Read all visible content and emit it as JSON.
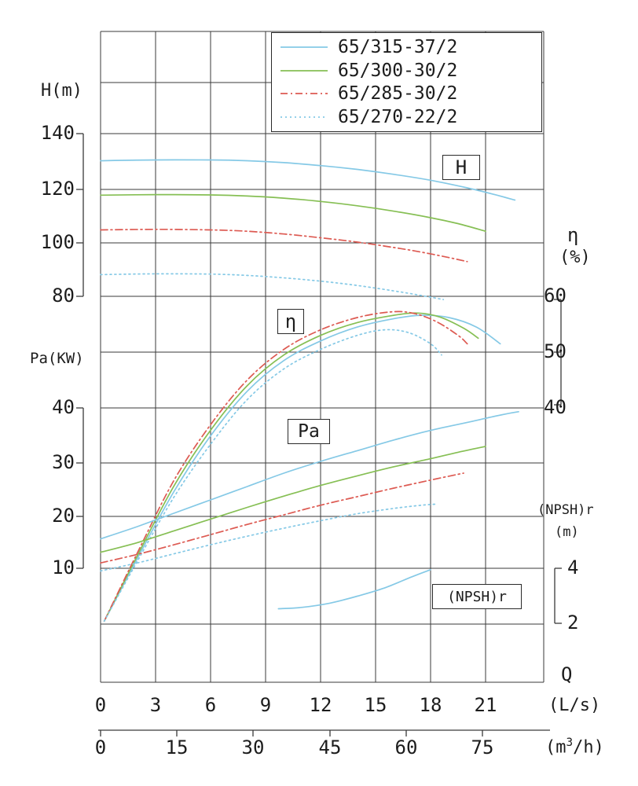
{
  "legend": {
    "items": [
      {
        "label": "65/315-37/2",
        "color": "blue",
        "dash": "solid"
      },
      {
        "label": "65/300-30/2",
        "color": "green",
        "dash": "solid"
      },
      {
        "label": "65/285-30/2",
        "color": "red",
        "dash": "dashdot"
      },
      {
        "label": "65/270-22/2",
        "color": "blue",
        "dash": "dotted"
      }
    ]
  },
  "axes": {
    "h_label": "H(m)",
    "h_ticks": [
      "140",
      "120",
      "100",
      "80"
    ],
    "pa_label": "Pa(KW)",
    "pa_ticks": [
      "40",
      "30",
      "20",
      "10"
    ],
    "eta_label": "η",
    "eta_unit": "(%)",
    "eta_ticks": [
      "60",
      "50",
      "40"
    ],
    "npshr_label": "(NPSH)r",
    "npshr_unit": "(m)",
    "npshr_ticks": [
      "4",
      "2"
    ],
    "q_label": "Q",
    "q_unit_ls": "(L/s)",
    "q_unit2_pre": "(m",
    "q_unit2_sup": "3",
    "q_unit2_post": "/h)",
    "x_ticks_ls": [
      "0",
      "3",
      "6",
      "9",
      "12",
      "15",
      "18",
      "21"
    ],
    "x_ticks_m3h": [
      "0",
      "15",
      "30",
      "45",
      "60",
      "75"
    ]
  },
  "curve_labels": {
    "h": "H",
    "eta": "η",
    "pa": "Pa",
    "npshr": "(NPSH)r"
  },
  "chart_data": {
    "type": "line",
    "title": "Pump performance curves 65/315-37/2, 65/300-30/2, 65/285-30/2, 65/270-22/2",
    "x_axis": {
      "label": "Q",
      "units": [
        "L/s",
        "m3/h"
      ],
      "ticks_ls": [
        0,
        3,
        6,
        9,
        12,
        15,
        18,
        21
      ],
      "ticks_m3h": [
        0,
        15,
        30,
        45,
        60,
        75
      ],
      "range_ls": [
        0,
        24.2
      ]
    },
    "y_axes": {
      "H": {
        "label": "H(m)",
        "ticks": [
          140,
          120,
          100,
          80
        ]
      },
      "Pa": {
        "label": "Pa(KW)",
        "ticks": [
          40,
          30,
          20,
          10
        ]
      },
      "eta": {
        "label": "η(%)",
        "ticks": [
          60,
          50,
          40
        ]
      },
      "NPSHr": {
        "label": "(NPSH)r(m)",
        "ticks": [
          4,
          2
        ]
      }
    },
    "grid": true,
    "legend_position": "top-right",
    "colors": {
      "blue": "#85c9e6",
      "green": "#86bf54",
      "red": "#dd5a52"
    },
    "series": [
      {
        "model": "65/315-37/2",
        "axis": "H",
        "color": "blue",
        "style": "solid",
        "points": [
          [
            0,
            130
          ],
          [
            3,
            130.3
          ],
          [
            6,
            130.3
          ],
          [
            8,
            130
          ],
          [
            10,
            129.3
          ],
          [
            12,
            128.2
          ],
          [
            14,
            126.8
          ],
          [
            16,
            125
          ],
          [
            18,
            122.8
          ],
          [
            20,
            120
          ],
          [
            21.5,
            117.5
          ],
          [
            22.6,
            115.5
          ]
        ]
      },
      {
        "model": "65/300-30/2",
        "axis": "H",
        "color": "green",
        "style": "solid",
        "points": [
          [
            0,
            117.3
          ],
          [
            3,
            117.5
          ],
          [
            6,
            117.4
          ],
          [
            8,
            117
          ],
          [
            10,
            116.2
          ],
          [
            12,
            115
          ],
          [
            14,
            113.4
          ],
          [
            16,
            111.4
          ],
          [
            18,
            109
          ],
          [
            19.5,
            106.8
          ],
          [
            21,
            104
          ]
        ]
      },
      {
        "model": "65/285-30/2",
        "axis": "H",
        "color": "red",
        "style": "dashdot",
        "points": [
          [
            0,
            104.5
          ],
          [
            3,
            104.7
          ],
          [
            6,
            104.5
          ],
          [
            8,
            104
          ],
          [
            10,
            103
          ],
          [
            12,
            101.6
          ],
          [
            14,
            100
          ],
          [
            16,
            98
          ],
          [
            17.5,
            96.3
          ],
          [
            19,
            94.3
          ],
          [
            20,
            92.8
          ]
        ]
      },
      {
        "model": "65/270-22/2",
        "axis": "H",
        "color": "blue",
        "style": "dotted",
        "points": [
          [
            0,
            88
          ],
          [
            3,
            88.3
          ],
          [
            6,
            88.2
          ],
          [
            8,
            87.7
          ],
          [
            10,
            86.8
          ],
          [
            12,
            85.6
          ],
          [
            14,
            84
          ],
          [
            16,
            82
          ],
          [
            17.5,
            80.3
          ],
          [
            18.7,
            78.8
          ]
        ]
      },
      {
        "model": "65/315-37/2",
        "axis": "eta",
        "color": "blue",
        "style": "solid",
        "points": [
          [
            0.2,
            1.8
          ],
          [
            2,
            13
          ],
          [
            4,
            25
          ],
          [
            6,
            35
          ],
          [
            8,
            43
          ],
          [
            10,
            48.5
          ],
          [
            12,
            52
          ],
          [
            14,
            54.5
          ],
          [
            16,
            56
          ],
          [
            17.5,
            56.6
          ],
          [
            19,
            56.2
          ],
          [
            20.5,
            54.5
          ],
          [
            21.8,
            51.5
          ]
        ]
      },
      {
        "model": "65/300-30/2",
        "axis": "eta",
        "color": "green",
        "style": "solid",
        "points": [
          [
            0.2,
            1.8
          ],
          [
            2,
            13.5
          ],
          [
            4,
            26
          ],
          [
            6,
            36
          ],
          [
            8,
            44
          ],
          [
            10,
            49.5
          ],
          [
            12,
            53
          ],
          [
            14,
            55.3
          ],
          [
            16,
            56.6
          ],
          [
            17.3,
            57
          ],
          [
            18.5,
            56.3
          ],
          [
            19.8,
            54.3
          ],
          [
            20.6,
            52.5
          ]
        ]
      },
      {
        "model": "65/285-30/2",
        "axis": "eta",
        "color": "red",
        "style": "dashdot",
        "points": [
          [
            0.2,
            1.8
          ],
          [
            2,
            14
          ],
          [
            4,
            27
          ],
          [
            6,
            37
          ],
          [
            8,
            45
          ],
          [
            10,
            50.5
          ],
          [
            12,
            54
          ],
          [
            14,
            56.2
          ],
          [
            15.8,
            57.2
          ],
          [
            17,
            57
          ],
          [
            18.3,
            55.5
          ],
          [
            19.5,
            53
          ],
          [
            20,
            51.5
          ]
        ]
      },
      {
        "model": "65/270-22/2",
        "axis": "eta",
        "color": "blue",
        "style": "dotted",
        "points": [
          [
            0.2,
            1.8
          ],
          [
            2,
            12.5
          ],
          [
            4,
            24
          ],
          [
            6,
            33.5
          ],
          [
            8,
            41.5
          ],
          [
            10,
            47
          ],
          [
            12,
            50.5
          ],
          [
            14,
            53
          ],
          [
            15.5,
            54
          ],
          [
            16.8,
            53.5
          ],
          [
            18,
            51.5
          ],
          [
            18.6,
            49.5
          ]
        ]
      },
      {
        "model": "65/315-37/2",
        "axis": "Pa",
        "color": "blue",
        "style": "solid",
        "points": [
          [
            0,
            15.5
          ],
          [
            2,
            17.8
          ],
          [
            4,
            20.3
          ],
          [
            6,
            22.8
          ],
          [
            8,
            25.3
          ],
          [
            10,
            27.8
          ],
          [
            12,
            30
          ],
          [
            14,
            32
          ],
          [
            16,
            34
          ],
          [
            18,
            35.8
          ],
          [
            20,
            37.3
          ],
          [
            22,
            38.8
          ],
          [
            22.8,
            39.3
          ]
        ]
      },
      {
        "model": "65/300-30/2",
        "axis": "Pa",
        "color": "green",
        "style": "solid",
        "points": [
          [
            0,
            13
          ],
          [
            2,
            14.8
          ],
          [
            4,
            17
          ],
          [
            6,
            19.2
          ],
          [
            8,
            21.4
          ],
          [
            10,
            23.5
          ],
          [
            12,
            25.5
          ],
          [
            14,
            27.3
          ],
          [
            16,
            29
          ],
          [
            18,
            30.5
          ],
          [
            19.5,
            31.7
          ],
          [
            21,
            32.8
          ]
        ]
      },
      {
        "model": "65/285-30/2",
        "axis": "Pa",
        "color": "red",
        "style": "dashdot",
        "points": [
          [
            0,
            11
          ],
          [
            2,
            12.6
          ],
          [
            4,
            14.4
          ],
          [
            6,
            16.3
          ],
          [
            8,
            18.2
          ],
          [
            10,
            20
          ],
          [
            12,
            21.8
          ],
          [
            14,
            23.4
          ],
          [
            16,
            25
          ],
          [
            18,
            26.5
          ],
          [
            19.8,
            27.8
          ]
        ]
      },
      {
        "model": "65/270-22/2",
        "axis": "Pa",
        "color": "blue",
        "style": "dotted",
        "points": [
          [
            0,
            9.5
          ],
          [
            2,
            11
          ],
          [
            4,
            12.7
          ],
          [
            6,
            14.4
          ],
          [
            8,
            16
          ],
          [
            10,
            17.5
          ],
          [
            12,
            18.9
          ],
          [
            14,
            20.2
          ],
          [
            16,
            21.2
          ],
          [
            17.5,
            21.8
          ],
          [
            18.3,
            22
          ]
        ]
      },
      {
        "model": "65/315-37/2",
        "axis": "NPSHr",
        "color": "blue",
        "style": "solid",
        "points": [
          [
            9.7,
            2.55
          ],
          [
            11,
            2.6
          ],
          [
            12.5,
            2.75
          ],
          [
            14,
            3.0
          ],
          [
            15.5,
            3.3
          ],
          [
            17,
            3.7
          ],
          [
            18,
            3.95
          ]
        ]
      }
    ]
  }
}
